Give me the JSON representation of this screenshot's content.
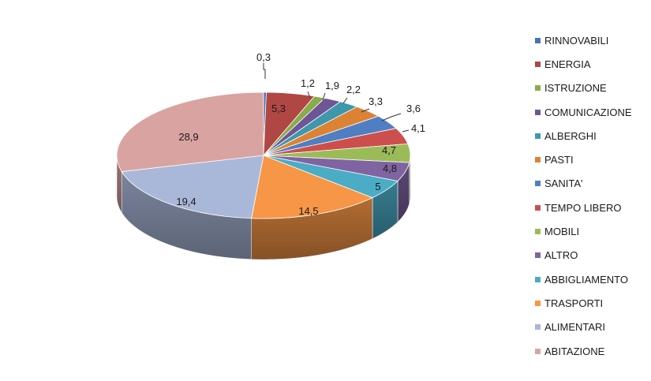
{
  "chart_data": {
    "type": "pie",
    "title": "",
    "legend_position": "right",
    "slices": [
      {
        "label": "RINNOVABILI",
        "value": 0.3,
        "value_label": "0,3",
        "color": "#4a72b0"
      },
      {
        "label": "ENERGIA",
        "value": 5.3,
        "value_label": "5,3",
        "color": "#b04745"
      },
      {
        "label": "ISTRUZIONE",
        "value": 1.2,
        "value_label": "1,2",
        "color": "#8aab4b"
      },
      {
        "label": "COMUNICAZIONE",
        "value": 1.9,
        "value_label": "1,9",
        "color": "#6f5596"
      },
      {
        "label": "ALBERGHI",
        "value": 2.2,
        "value_label": "2,2",
        "color": "#3f97ac"
      },
      {
        "label": "PASTI",
        "value": 3.3,
        "value_label": "3,3",
        "color": "#dc8235"
      },
      {
        "label": "SANITA'",
        "value": 3.6,
        "value_label": "3,6",
        "color": "#4f7fc2"
      },
      {
        "label": "TEMPO LIBERO",
        "value": 4.1,
        "value_label": "4,1",
        "color": "#cc4f4d"
      },
      {
        "label": "MOBILI",
        "value": 4.7,
        "value_label": "4,7",
        "color": "#9bbb59"
      },
      {
        "label": "ALTRO",
        "value": 4.8,
        "value_label": "4,8",
        "color": "#8064a2"
      },
      {
        "label": "ABBIGLIAMENTO",
        "value": 5,
        "value_label": "5",
        "color": "#4bacc6"
      },
      {
        "label": "TRASPORTI",
        "value": 14.5,
        "value_label": "14,5",
        "color": "#f79646"
      },
      {
        "label": "ALIMENTARI",
        "value": 19.4,
        "value_label": "19,4",
        "color": "#a9b8d8"
      },
      {
        "label": "ABITAZIONE",
        "value": 28.9,
        "value_label": "28,9",
        "color": "#d9a3a1"
      }
    ]
  }
}
